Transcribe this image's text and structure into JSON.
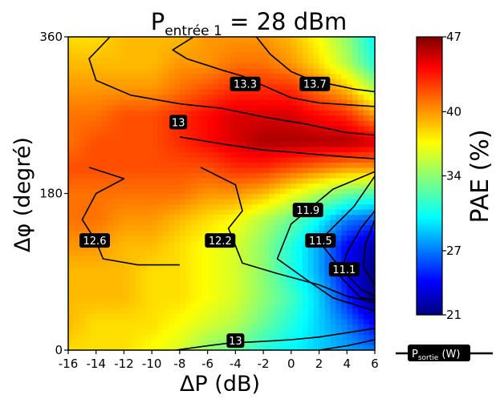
{
  "chart_data": {
    "type": "heatmap",
    "title": {
      "main": "P",
      "subscript": "entrée 1",
      "suffix": " = 28 dBm"
    },
    "xlabel": "ΔP (dB)",
    "ylabel": "Δφ (degré)",
    "xlim": [
      -16,
      6
    ],
    "ylim": [
      0,
      360
    ],
    "xticks": [
      -16,
      -14,
      -12,
      -10,
      -8,
      -6,
      -4,
      -2,
      0,
      2,
      4,
      6
    ],
    "yticks": [
      0,
      180,
      360
    ],
    "colorbar": {
      "label": "PAE (%)",
      "range": [
        21,
        47
      ],
      "ticks": [
        21,
        27,
        34,
        40,
        47
      ],
      "colormap": "jet"
    },
    "pae_grid": {
      "x": [
        -16,
        -14,
        -12,
        -10,
        -8,
        -6,
        -4,
        -2,
        0,
        2,
        4,
        6
      ],
      "y": [
        0,
        30,
        60,
        90,
        120,
        150,
        180,
        210,
        240,
        270,
        300,
        330,
        360
      ],
      "z": [
        [
          38,
          38,
          38,
          37,
          36,
          34,
          33,
          31,
          30,
          29,
          28,
          27
        ],
        [
          39,
          38,
          38,
          38,
          37,
          36,
          35,
          33,
          31,
          29,
          27,
          24
        ],
        [
          39,
          39,
          39,
          38,
          38,
          37,
          36,
          34,
          32,
          29,
          25,
          21
        ],
        [
          39,
          39,
          39,
          38,
          38,
          37,
          36,
          34,
          31,
          28,
          24,
          21
        ],
        [
          40,
          40,
          39,
          39,
          38,
          37,
          36,
          34,
          31,
          28,
          24,
          22
        ],
        [
          41,
          41,
          40,
          40,
          39,
          38,
          37,
          35,
          33,
          30,
          27,
          26
        ],
        [
          41,
          41,
          41,
          41,
          41,
          40,
          40,
          39,
          37,
          35,
          33,
          32
        ],
        [
          42,
          42,
          42,
          42,
          42,
          42,
          43,
          43,
          42,
          41,
          40,
          40
        ],
        [
          41,
          42,
          42,
          42,
          43,
          44,
          45,
          46,
          46,
          46,
          46,
          45
        ],
        [
          41,
          41,
          42,
          42,
          43,
          44,
          45,
          45,
          45,
          44,
          43,
          40
        ],
        [
          40,
          40,
          40,
          40,
          41,
          42,
          43,
          43,
          43,
          41,
          39,
          35
        ],
        [
          39,
          39,
          39,
          39,
          40,
          40,
          41,
          41,
          40,
          38,
          35,
          31
        ],
        [
          38,
          38,
          39,
          39,
          39,
          40,
          40,
          40,
          39,
          37,
          34,
          30
        ]
      ]
    },
    "contours": [
      {
        "label": "13.7",
        "points": [
          [
            -2.5,
            360
          ],
          [
            -1.5,
            340
          ],
          [
            0,
            320
          ],
          [
            1.5,
            310
          ],
          [
            3,
            305
          ],
          [
            4.5,
            300
          ],
          [
            6,
            297
          ]
        ]
      },
      {
        "label": "13.3",
        "points": [
          [
            -7,
            360
          ],
          [
            -8.5,
            345
          ],
          [
            -7.5,
            335
          ],
          [
            -5,
            322
          ],
          [
            -3.5,
            315
          ],
          [
            -2,
            304
          ],
          [
            0,
            290
          ],
          [
            2,
            284
          ],
          [
            4,
            282
          ],
          [
            6,
            280
          ]
        ]
      },
      {
        "label": "13",
        "points": [
          [
            -13,
            360
          ],
          [
            -14.5,
            335
          ],
          [
            -14,
            310
          ],
          [
            -11.5,
            293
          ],
          [
            -8,
            283
          ],
          [
            -5,
            278
          ],
          [
            -2,
            268
          ],
          [
            1,
            260
          ],
          [
            4,
            250
          ],
          [
            6,
            247
          ]
        ]
      },
      {
        "label": "",
        "points": [
          [
            -8,
            245
          ],
          [
            -5,
            237
          ],
          [
            -2,
            230
          ],
          [
            1,
            226
          ],
          [
            4,
            222
          ],
          [
            6,
            220
          ]
        ]
      },
      {
        "label": "12.6",
        "points": [
          [
            -14.5,
            210
          ],
          [
            -12,
            197
          ],
          [
            -14,
            180
          ],
          [
            -15,
            150
          ],
          [
            -14,
            125
          ],
          [
            -13.5,
            105
          ],
          [
            -11,
            98
          ],
          [
            -8,
            98
          ]
        ]
      },
      {
        "label": "12.2",
        "points": [
          [
            -6.5,
            210
          ],
          [
            -4,
            190
          ],
          [
            -3.5,
            160
          ],
          [
            -4.5,
            140
          ],
          [
            -4,
            120
          ],
          [
            -3.5,
            100
          ],
          [
            -1,
            88
          ],
          [
            2,
            75
          ],
          [
            4,
            62
          ],
          [
            6,
            55
          ]
        ]
      },
      {
        "label": "11.9",
        "points": [
          [
            6,
            205
          ],
          [
            3,
            185
          ],
          [
            1.5,
            165
          ],
          [
            0,
            145
          ],
          [
            -1,
            105
          ],
          [
            1,
            82
          ],
          [
            3,
            60
          ],
          [
            6,
            45
          ]
        ]
      },
      {
        "label": "11.5",
        "points": [
          [
            6,
            200
          ],
          [
            4.5,
            165
          ],
          [
            2,
            125
          ],
          [
            3.5,
            95
          ],
          [
            5,
            70
          ],
          [
            6,
            62
          ]
        ]
      },
      {
        "label": "11.1",
        "points": [
          [
            6,
            160
          ],
          [
            5,
            140
          ],
          [
            4,
            112
          ],
          [
            3.5,
            85
          ],
          [
            5,
            60
          ],
          [
            6,
            58
          ]
        ]
      },
      {
        "label": "",
        "points": [
          [
            6,
            150
          ],
          [
            5.3,
            120
          ],
          [
            5.2,
            95
          ],
          [
            6,
            75
          ]
        ]
      },
      {
        "label": "13",
        "points": [
          [
            -8.3,
            0
          ],
          [
            -6,
            5
          ],
          [
            -4.5,
            8
          ],
          [
            -2,
            10
          ],
          [
            0,
            12
          ],
          [
            2,
            15
          ],
          [
            4,
            20
          ],
          [
            6,
            25
          ]
        ]
      },
      {
        "label": "",
        "points": [
          [
            2,
            0
          ],
          [
            4,
            5
          ],
          [
            6,
            12
          ]
        ]
      }
    ],
    "contour_labels": [
      {
        "text": "13.3",
        "x": -3.3,
        "y": 306
      },
      {
        "text": "13.7",
        "x": 1.7,
        "y": 306
      },
      {
        "text": "13",
        "x": -8.1,
        "y": 262
      },
      {
        "text": "11.9",
        "x": 1.2,
        "y": 161
      },
      {
        "text": "12.6",
        "x": -14.1,
        "y": 126
      },
      {
        "text": "12.2",
        "x": -5.1,
        "y": 126
      },
      {
        "text": "11.5",
        "x": 2.1,
        "y": 126
      },
      {
        "text": "11.1",
        "x": 3.8,
        "y": 93
      },
      {
        "text": "13",
        "x": -4.0,
        "y": 11
      }
    ],
    "legend": {
      "entries": [
        {
          "text": "P",
          "subscript": "sortie",
          "suffix": " (W)",
          "style": "line",
          "color": "#000000"
        }
      ],
      "position": "bottom-right"
    },
    "grid": false
  }
}
